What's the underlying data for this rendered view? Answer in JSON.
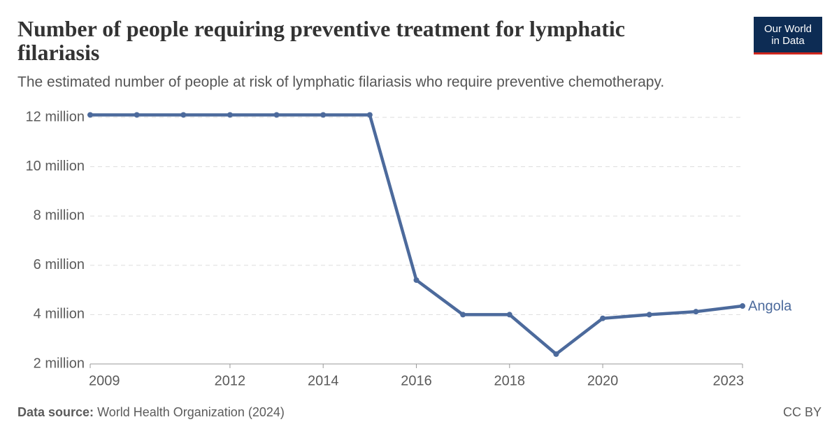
{
  "logo": {
    "line1": "Our World",
    "line2": "in Data"
  },
  "footer": {
    "source_label": "Data source:",
    "source": "World Health Organization (2024)",
    "license": "CC BY"
  },
  "chart_data": {
    "type": "line",
    "title": "Number of people requiring preventive treatment for lymphatic filariasis",
    "subtitle": "The estimated number of people at risk of lymphatic filariasis who require preventive chemotherapy.",
    "x": [
      2009,
      2010,
      2011,
      2012,
      2013,
      2014,
      2015,
      2016,
      2017,
      2018,
      2019,
      2020,
      2021,
      2022,
      2023
    ],
    "series": [
      {
        "name": "Angola",
        "color": "#4c6a9c",
        "values": [
          12100000,
          12100000,
          12100000,
          12100000,
          12100000,
          12100000,
          12100000,
          5400000,
          4000000,
          4000000,
          2400000,
          3850000,
          4000000,
          4120000,
          4350000
        ]
      }
    ],
    "xlim": [
      2009,
      2023
    ],
    "xticks": [
      2009,
      2012,
      2014,
      2016,
      2018,
      2020,
      2023
    ],
    "ylim": [
      2000000,
      12000000
    ],
    "yticks": [
      {
        "value": 2000000,
        "label": "2 million"
      },
      {
        "value": 4000000,
        "label": "4 million"
      },
      {
        "value": 6000000,
        "label": "6 million"
      },
      {
        "value": 8000000,
        "label": "8 million"
      },
      {
        "value": 10000000,
        "label": "10 million"
      },
      {
        "value": 12000000,
        "label": "12 million"
      }
    ],
    "grid": true
  }
}
